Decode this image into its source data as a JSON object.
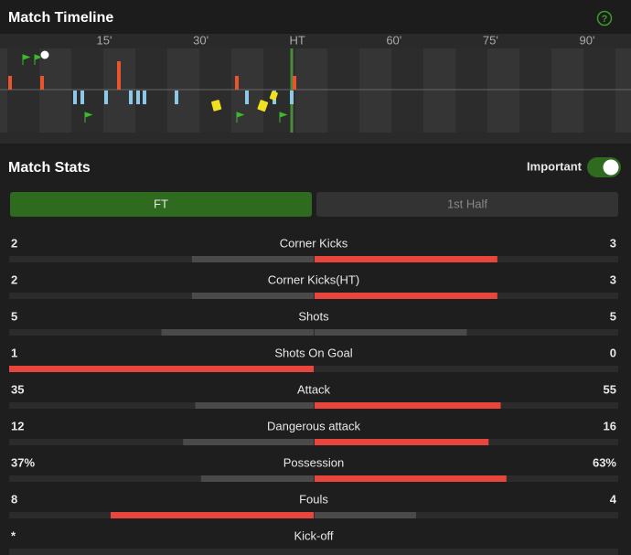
{
  "timeline": {
    "title": "Match Timeline",
    "ticks": [
      "15'",
      "30'",
      "HT",
      "60'",
      "75'",
      "90'"
    ]
  },
  "stats": {
    "title": "Match Stats",
    "toggle_label": "Important",
    "tabs": [
      "FT",
      "1st Half"
    ],
    "rows": [
      {
        "label": "Corner Kicks",
        "home": 2,
        "away": 3
      },
      {
        "label": "Corner Kicks(HT)",
        "home": 2,
        "away": 3
      },
      {
        "label": "Shots",
        "home": 5,
        "away": 5
      },
      {
        "label": "Shots On Goal",
        "home": 1,
        "away": 0
      },
      {
        "label": "Attack",
        "home": 35,
        "away": 55
      },
      {
        "label": "Dangerous attack",
        "home": 12,
        "away": 16
      },
      {
        "label": "Possession",
        "home": 37,
        "away": 63,
        "home_label": "37%",
        "away_label": "63%"
      },
      {
        "label": "Fouls",
        "home": 8,
        "away": 4
      },
      {
        "label": "Kick-off",
        "home_label": "*"
      }
    ]
  }
}
